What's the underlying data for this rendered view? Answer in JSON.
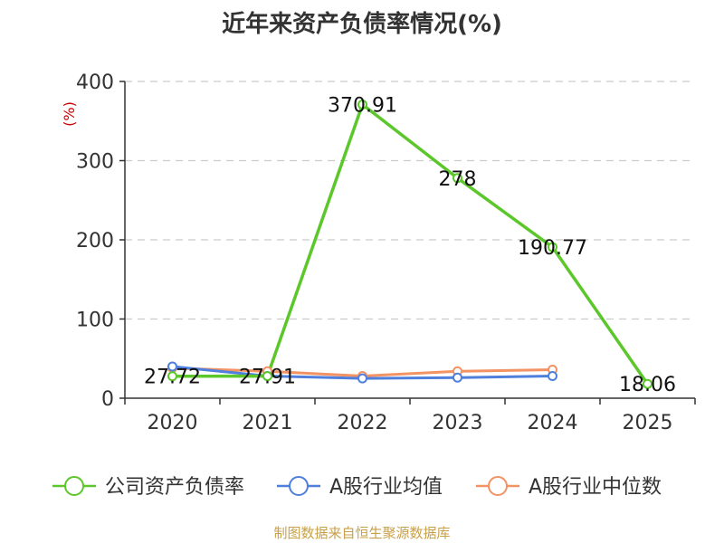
{
  "chart_data": {
    "type": "line",
    "title": "近年来资产负债率情况(%)",
    "ylabel": "(%)",
    "categories": [
      "2020",
      "2021",
      "2022",
      "2023",
      "2024",
      "2025"
    ],
    "ylim": [
      0,
      400
    ],
    "yticks": [
      0,
      100,
      200,
      300,
      400
    ],
    "grid": true,
    "legend_position": "bottom",
    "series": [
      {
        "name": "公司资产负债率",
        "color": "#5cc72a",
        "values": [
          27.72,
          27.91,
          370.91,
          278,
          190.77,
          18.06
        ],
        "labels": [
          "27.72",
          "27.91",
          "370.91",
          "278",
          "190.77",
          "18.06"
        ]
      },
      {
        "name": "A股行业均值",
        "color": "#4f7fdc",
        "values": [
          40,
          28,
          25,
          26,
          28,
          null
        ]
      },
      {
        "name": "A股行业中位数",
        "color": "#f39263",
        "values": [
          38,
          34,
          28,
          34,
          36,
          null
        ]
      }
    ]
  },
  "source": "制图数据来自恒生聚源数据库"
}
